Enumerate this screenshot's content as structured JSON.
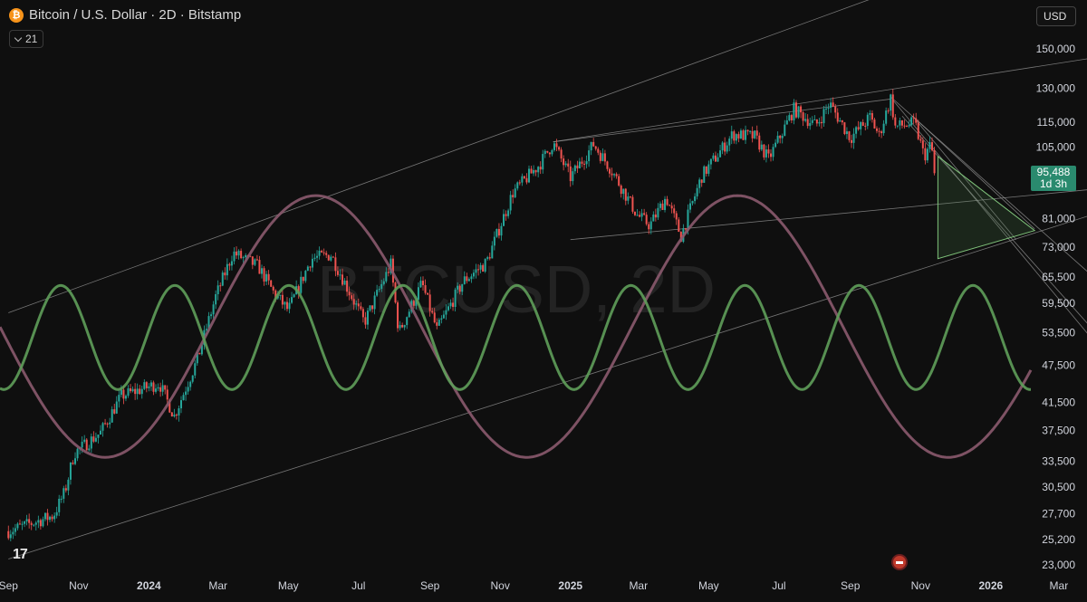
{
  "header": {
    "symbol_icon": "bitcoin-icon",
    "title": "Bitcoin / U.S. Dollar · 2D · Bitstamp",
    "indicator_value": "21",
    "currency": "USD"
  },
  "watermark": "BTCUSD, 2D",
  "price_tag": {
    "price": "95,488",
    "countdown": "1d 3h"
  },
  "branding": {
    "logo_text": "17"
  },
  "colors": {
    "background": "#0f0f0f",
    "up": "#26a69a",
    "down": "#ef5350",
    "long_cycle": "#8b5a6e",
    "short_cycle": "#5f9e5a",
    "projection_fill": "#4a7a4a"
  },
  "chart_data": {
    "type": "candlestick",
    "scale": "log",
    "ylim": [
      23000,
      170000
    ],
    "y_ticks": [
      "150,000",
      "130,000",
      "115,000",
      "105,000",
      "81,000",
      "73,000",
      "65,500",
      "59,500",
      "53,500",
      "47,500",
      "41,500",
      "37,500",
      "33,500",
      "30,500",
      "27,700",
      "25,200",
      "23,000"
    ],
    "x_ticks": [
      "Sep",
      "Nov",
      "2024",
      "Mar",
      "May",
      "Jul",
      "Sep",
      "Nov",
      "2025",
      "Mar",
      "May",
      "Jul",
      "Sep",
      "Nov",
      "2026",
      "Mar"
    ],
    "price_path": [
      [
        "2023-09-01",
        26000
      ],
      [
        "2023-10-10",
        27500
      ],
      [
        "2023-10-20",
        30000
      ],
      [
        "2023-10-28",
        34500
      ],
      [
        "2023-11-20",
        37200
      ],
      [
        "2023-12-08",
        42500
      ],
      [
        "2024-01-10",
        44500
      ],
      [
        "2024-01-23",
        39500
      ],
      [
        "2024-02-12",
        48500
      ],
      [
        "2024-02-28",
        61000
      ],
      [
        "2024-03-14",
        71500
      ],
      [
        "2024-04-05",
        68000
      ],
      [
        "2024-04-18",
        62000
      ],
      [
        "2024-05-01",
        58000
      ],
      [
        "2024-05-21",
        70000
      ],
      [
        "2024-06-07",
        71000
      ],
      [
        "2024-06-25",
        61000
      ],
      [
        "2024-07-06",
        55500
      ],
      [
        "2024-07-29",
        68500
      ],
      [
        "2024-08-05",
        53500
      ],
      [
        "2024-08-25",
        64000
      ],
      [
        "2024-09-07",
        54000
      ],
      [
        "2024-09-30",
        64500
      ],
      [
        "2024-10-20",
        69000
      ],
      [
        "2024-11-12",
        89000
      ],
      [
        "2024-12-05",
        98500
      ],
      [
        "2024-12-17",
        106500
      ],
      [
        "2025-01-01",
        94000
      ],
      [
        "2025-01-21",
        106000
      ],
      [
        "2025-02-05",
        97000
      ],
      [
        "2025-02-28",
        82000
      ],
      [
        "2025-03-11",
        79000
      ],
      [
        "2025-03-25",
        87500
      ],
      [
        "2025-04-07",
        76000
      ],
      [
        "2025-04-25",
        94500
      ],
      [
        "2025-05-22",
        110000
      ],
      [
        "2025-06-10",
        109000
      ],
      [
        "2025-06-22",
        100500
      ],
      [
        "2025-07-14",
        120500
      ],
      [
        "2025-08-02",
        113500
      ],
      [
        "2025-08-14",
        123000
      ],
      [
        "2025-09-01",
        108500
      ],
      [
        "2025-09-18",
        117000
      ],
      [
        "2025-09-26",
        109500
      ],
      [
        "2025-10-06",
        125500
      ],
      [
        "2025-10-10",
        113000
      ],
      [
        "2025-10-27",
        114500
      ],
      [
        "2025-11-04",
        101500
      ],
      [
        "2025-11-10",
        106000
      ],
      [
        "2025-11-14",
        95488
      ]
    ],
    "long_cycle": {
      "period_days": 366,
      "trough_date": "2023-11-24",
      "high_price": 88000,
      "low_price": 34000
    },
    "short_cycle": {
      "period_days": 99,
      "trough_date": "2023-12-05",
      "high_price": 63500,
      "low_price": 43500
    },
    "trendlines": [
      {
        "from": [
          "2023-09-01",
          57500
        ],
        "to": [
          "2025-10-25",
          190000
        ]
      },
      {
        "from": [
          "2024-12-17",
          107000
        ],
        "to": [
          "2026-03-29",
          145000
        ]
      },
      {
        "from": [
          "2024-12-17",
          107000
        ],
        "to": [
          "2025-10-06",
          125000
        ]
      },
      {
        "from": [
          "2025-01-01",
          75000
        ],
        "to": [
          "2026-03-29",
          90000
        ]
      },
      {
        "from": [
          "2023-09-01",
          23500
        ],
        "to": [
          "2026-03-29",
          82000
        ]
      },
      {
        "from": [
          "2025-10-06",
          126000
        ],
        "to": [
          "2026-03-29",
          66000
        ]
      },
      {
        "from": [
          "2025-10-08",
          124500
        ],
        "to": [
          "2026-03-29",
          52500
        ]
      },
      {
        "from": [
          "2025-10-16",
          117500
        ],
        "to": [
          "2026-03-29",
          54500
        ]
      },
      {
        "from": [
          "2025-10-25",
          117500
        ],
        "to": [
          "2026-02-08",
          78000
        ]
      },
      {
        "from": [
          "2025-10-25",
          117500
        ],
        "to": [
          "2026-01-23",
          75000
        ]
      }
    ],
    "projection_triangle": [
      [
        "2025-11-16",
        101500
      ],
      [
        "2026-02-08",
        77500
      ],
      [
        "2025-11-16",
        70000
      ]
    ]
  }
}
